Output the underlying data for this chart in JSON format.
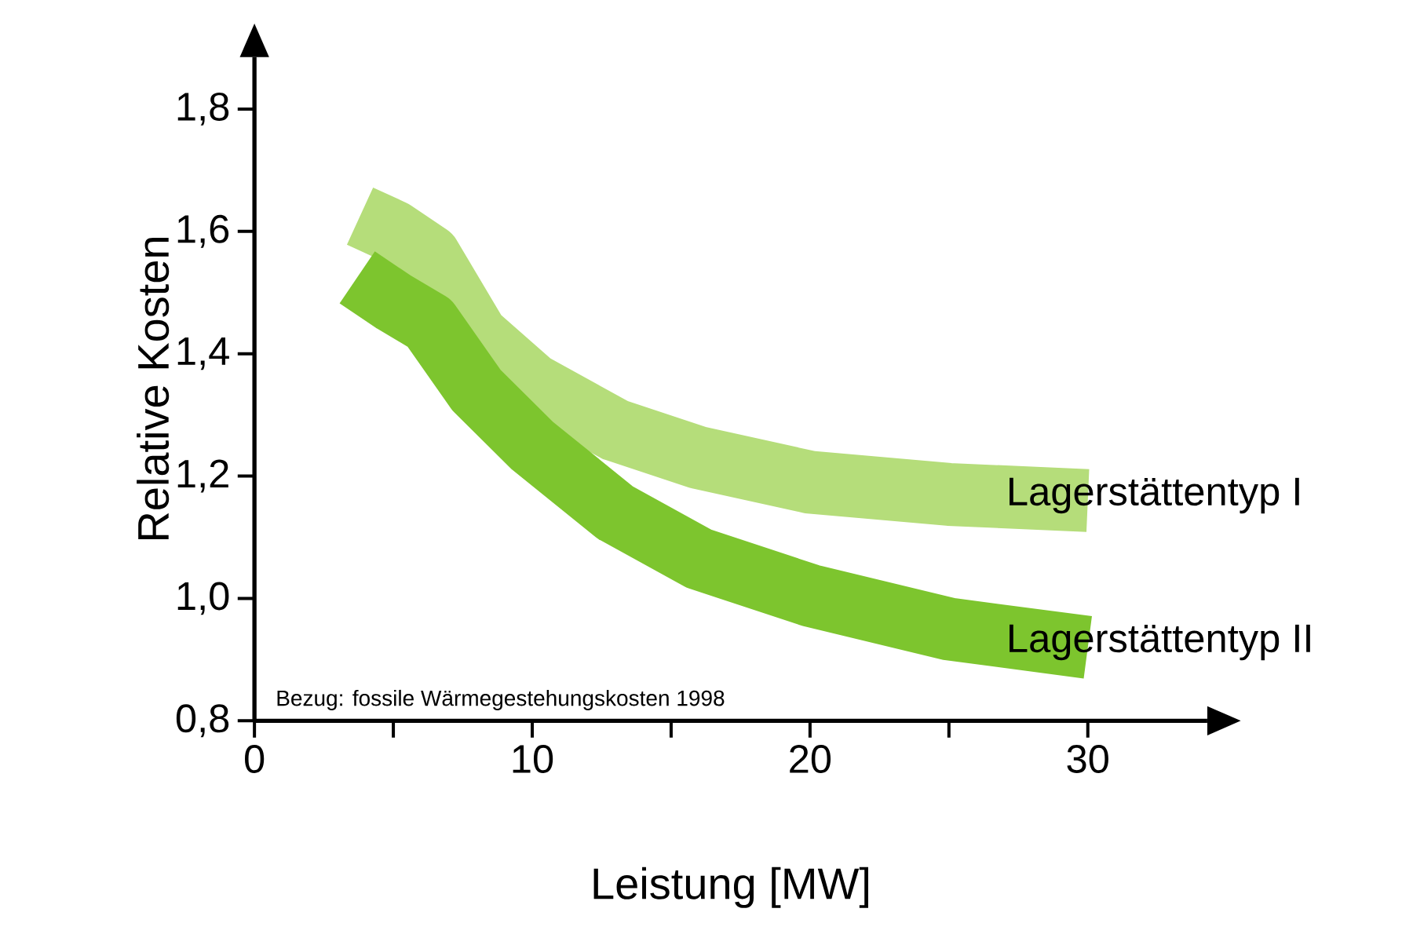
{
  "chart_data": {
    "type": "line",
    "xlabel": "Leistung [MW]",
    "ylabel": "Relative Kosten",
    "annotations": [
      "Bezug: fossile Wärmegestehungskosten 1998"
    ],
    "xlim": [
      0,
      34.3
    ],
    "ylim": [
      0.8,
      1.885
    ],
    "xticks": [
      0,
      {
        "value": 5,
        "label": null
      },
      10,
      {
        "value": 15,
        "label": null
      },
      20,
      {
        "value": 25,
        "label": null
      },
      30
    ],
    "yticks": [
      {
        "value": 0.8,
        "label": "0,8"
      },
      {
        "value": 1.0,
        "label": "1,0"
      },
      {
        "value": 1.2,
        "label": "1,2"
      },
      {
        "value": 1.4,
        "label": "1,4"
      },
      {
        "value": 1.6,
        "label": "1,6"
      },
      {
        "value": 1.8,
        "label": "1,8"
      }
    ],
    "marker": "none",
    "grid": false,
    "series": [
      {
        "name": "Lagerstättentyp I",
        "color": "#b5dd7a",
        "x": [
          3.8,
          5,
          6.3,
          8,
          10,
          13,
          16,
          20,
          25,
          30
        ],
        "values": [
          1.625,
          1.6,
          1.56,
          1.43,
          1.35,
          1.275,
          1.23,
          1.19,
          1.17,
          1.16
        ]
      },
      {
        "name": "Lagerstättentyp II",
        "color": "#7dc52e",
        "x": [
          3.7,
          5,
          6.3,
          8,
          10,
          13,
          16,
          20,
          25,
          30
        ],
        "values": [
          1.525,
          1.485,
          1.45,
          1.34,
          1.25,
          1.14,
          1.065,
          1.005,
          0.95,
          0.92
        ]
      }
    ]
  }
}
